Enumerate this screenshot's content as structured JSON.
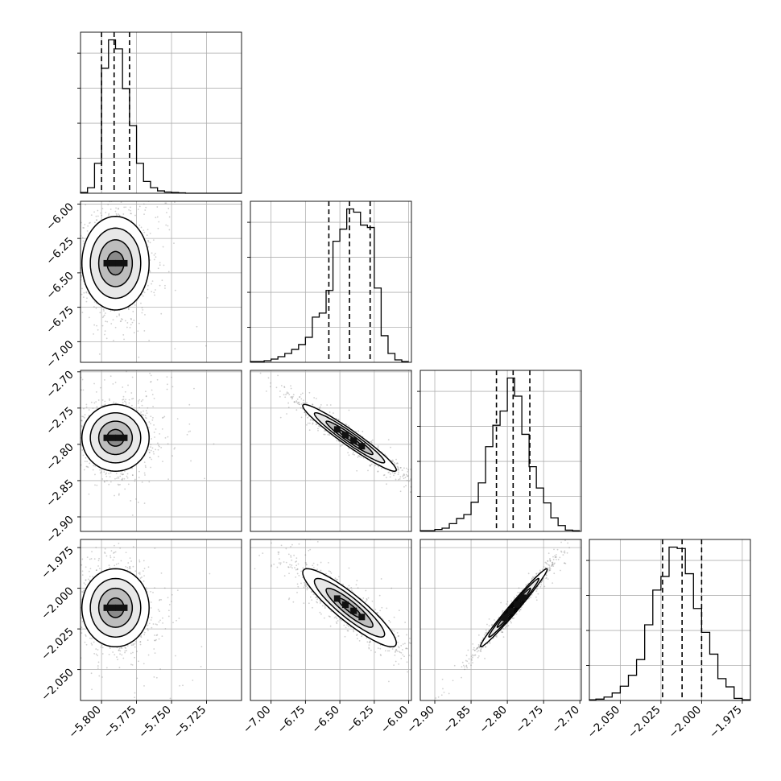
{
  "chart_data": {
    "type": "corner",
    "description": "Corner plot of 4 parameters: 1-D histograms on diagonal with dashed quantile lines, 2-D density/contour panels below diagonal",
    "parameters": [
      {
        "range": [
          -5.815,
          -5.7
        ],
        "ticks": [
          -5.8,
          -5.775,
          -5.75,
          -5.725
        ],
        "tick_labels": [
          "−5.800",
          "−5.775",
          "−5.750",
          "−5.725"
        ],
        "quantiles": [
          -5.8,
          -5.791,
          -5.78
        ],
        "mean": -5.79,
        "sd": 0.012
      },
      {
        "range": [
          -7.15,
          -5.98
        ],
        "ticks": [
          -7.0,
          -6.75,
          -6.5,
          -6.25,
          -6.0
        ],
        "tick_labels": [
          "−7.00",
          "−6.75",
          "−6.50",
          "−6.25",
          "−6.00"
        ],
        "quantiles": [
          -6.58,
          -6.43,
          -6.28
        ],
        "mean": -6.43,
        "sd": 0.17
      },
      {
        "range": [
          -2.92,
          -2.698
        ],
        "ticks": [
          -2.9,
          -2.85,
          -2.8,
          -2.75,
          -2.7
        ],
        "tick_labels": [
          "−2.90",
          "−2.85",
          "−2.80",
          "−2.75",
          "−2.70"
        ],
        "quantiles": [
          -2.815,
          -2.792,
          -2.769
        ],
        "mean": -2.791,
        "sd": 0.023
      },
      {
        "range": [
          -2.069,
          -1.97
        ],
        "ticks": [
          -2.05,
          -2.025,
          -2.0,
          -1.975
        ],
        "tick_labels": [
          "−2.050",
          "−2.025",
          "−2.000",
          "−1.975"
        ],
        "quantiles": [
          -2.024,
          -2.012,
          -2.0
        ],
        "mean": -2.012,
        "sd": 0.012
      }
    ],
    "histograms": [
      {
        "bins": [
          -5.815,
          -5.81,
          -5.805,
          -5.8,
          -5.795,
          -5.79,
          -5.785,
          -5.78,
          -5.775,
          -5.77,
          -5.765,
          -5.76,
          -5.755,
          -5.75,
          -5.745,
          -5.74,
          -5.735,
          -5.73,
          -5.725,
          -5.72,
          -5.715,
          -5.71,
          -5.705,
          -5.7
        ],
        "counts": [
          2,
          14,
          76,
          318,
          390,
          367,
          266,
          172,
          76,
          30,
          14,
          6,
          3,
          2,
          1,
          0,
          0,
          0,
          0,
          0,
          0,
          0,
          0
        ]
      },
      {
        "bins": [
          -7.15,
          -7.1,
          -7.05,
          -7.0,
          -6.95,
          -6.9,
          -6.85,
          -6.8,
          -6.75,
          -6.7,
          -6.65,
          -6.6,
          -6.55,
          -6.5,
          -6.45,
          -6.4,
          -6.35,
          -6.3,
          -6.25,
          -6.2,
          -6.15,
          -6.1,
          -6.05,
          -6.0
        ],
        "counts": [
          2,
          2,
          4,
          8,
          14,
          22,
          32,
          44,
          62,
          112,
          122,
          178,
          300,
          330,
          380,
          372,
          340,
          334,
          184,
          66,
          22,
          6,
          2
        ]
      },
      {
        "bins": [
          -2.92,
          -2.91,
          -2.9,
          -2.89,
          -2.88,
          -2.87,
          -2.86,
          -2.85,
          -2.84,
          -2.83,
          -2.82,
          -2.81,
          -2.8,
          -2.79,
          -2.78,
          -2.77,
          -2.76,
          -2.75,
          -2.74,
          -2.73,
          -2.72,
          -2.71,
          -2.7
        ],
        "counts": [
          2,
          2,
          6,
          10,
          24,
          40,
          52,
          90,
          150,
          262,
          328,
          372,
          474,
          418,
          300,
          200,
          134,
          88,
          42,
          18,
          4,
          2
        ]
      },
      {
        "bins": [
          -2.069,
          -2.065,
          -2.06,
          -2.055,
          -2.05,
          -2.045,
          -2.04,
          -2.035,
          -2.03,
          -2.025,
          -2.02,
          -2.015,
          -2.01,
          -2.005,
          -2.0,
          -1.995,
          -1.99,
          -1.985,
          -1.98,
          -1.975,
          -1.97
        ],
        "counts": [
          2,
          4,
          10,
          22,
          42,
          74,
          120,
          222,
          324,
          364,
          450,
          446,
          372,
          270,
          200,
          136,
          64,
          40,
          6,
          2
        ]
      }
    ],
    "pairs": [
      {
        "x": 0,
        "y": 1,
        "correlation": 0.0
      },
      {
        "x": 0,
        "y": 2,
        "correlation": 0.0
      },
      {
        "x": 1,
        "y": 2,
        "correlation": -0.96
      },
      {
        "x": 0,
        "y": 3,
        "correlation": 0.0
      },
      {
        "x": 1,
        "y": 3,
        "correlation": -0.9
      },
      {
        "x": 2,
        "y": 3,
        "correlation": 0.985
      }
    ],
    "contour_levels_sigma": [
      0.5,
      1.0,
      1.5,
      2.0
    ],
    "grid": true,
    "colors": {
      "line": "#000000",
      "grid": "#b0b0b0",
      "points": "#777777",
      "density": "#000000"
    }
  }
}
